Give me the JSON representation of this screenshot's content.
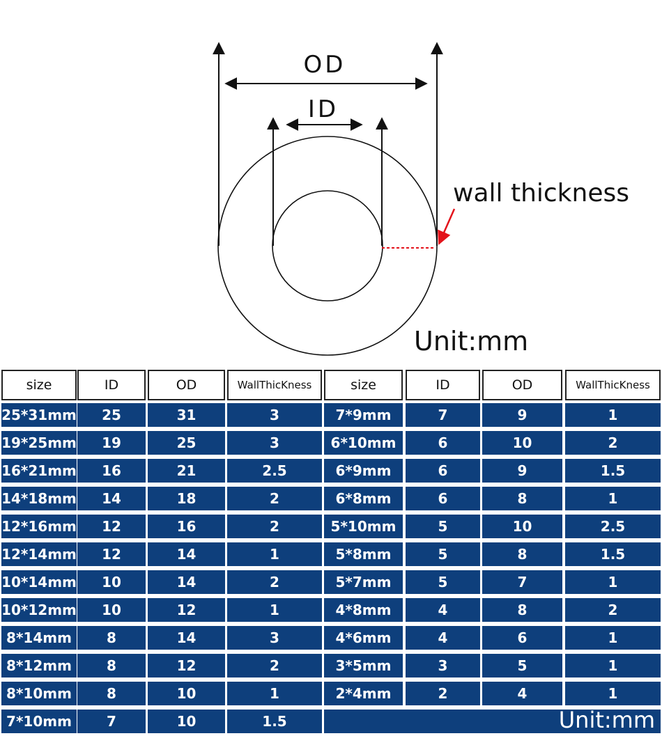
{
  "diagram": {
    "od_label": "OD",
    "id_label": "ID",
    "wall_label": "wall thickness",
    "unit_label": "Unit:mm",
    "colors": {
      "line": "#111111",
      "arrow_red": "#e3131b"
    }
  },
  "table": {
    "headers": [
      "size",
      "ID",
      "OD",
      "WallThicKness",
      "size",
      "ID",
      "OD",
      "WallThicKness"
    ],
    "left_rows": [
      [
        "25*31mm",
        "25",
        "31",
        "3"
      ],
      [
        "19*25mm",
        "19",
        "25",
        "3"
      ],
      [
        "16*21mm",
        "16",
        "21",
        "2.5"
      ],
      [
        "14*18mm",
        "14",
        "18",
        "2"
      ],
      [
        "12*16mm",
        "12",
        "16",
        "2"
      ],
      [
        "12*14mm",
        "12",
        "14",
        "1"
      ],
      [
        "10*14mm",
        "10",
        "14",
        "2"
      ],
      [
        "10*12mm",
        "10",
        "12",
        "1"
      ],
      [
        "8*14mm",
        "8",
        "14",
        "3"
      ],
      [
        "8*12mm",
        "8",
        "12",
        "2"
      ],
      [
        "8*10mm",
        "8",
        "10",
        "1"
      ],
      [
        "7*10mm",
        "7",
        "10",
        "1.5"
      ]
    ],
    "right_rows": [
      [
        "7*9mm",
        "7",
        "9",
        "1"
      ],
      [
        "6*10mm",
        "6",
        "10",
        "2"
      ],
      [
        "6*9mm",
        "6",
        "9",
        "1.5"
      ],
      [
        "6*8mm",
        "6",
        "8",
        "1"
      ],
      [
        "5*10mm",
        "5",
        "10",
        "2.5"
      ],
      [
        "5*8mm",
        "5",
        "8",
        "1.5"
      ],
      [
        "5*7mm",
        "5",
        "7",
        "1"
      ],
      [
        "4*8mm",
        "4",
        "8",
        "2"
      ],
      [
        "4*6mm",
        "4",
        "6",
        "1"
      ],
      [
        "3*5mm",
        "3",
        "5",
        "1"
      ],
      [
        "2*4mm",
        "2",
        "4",
        "1"
      ]
    ],
    "unit_label": "Unit:mm",
    "colors": {
      "cell_bg": "#0e3f7c",
      "header_bg": "#ffffff"
    }
  }
}
